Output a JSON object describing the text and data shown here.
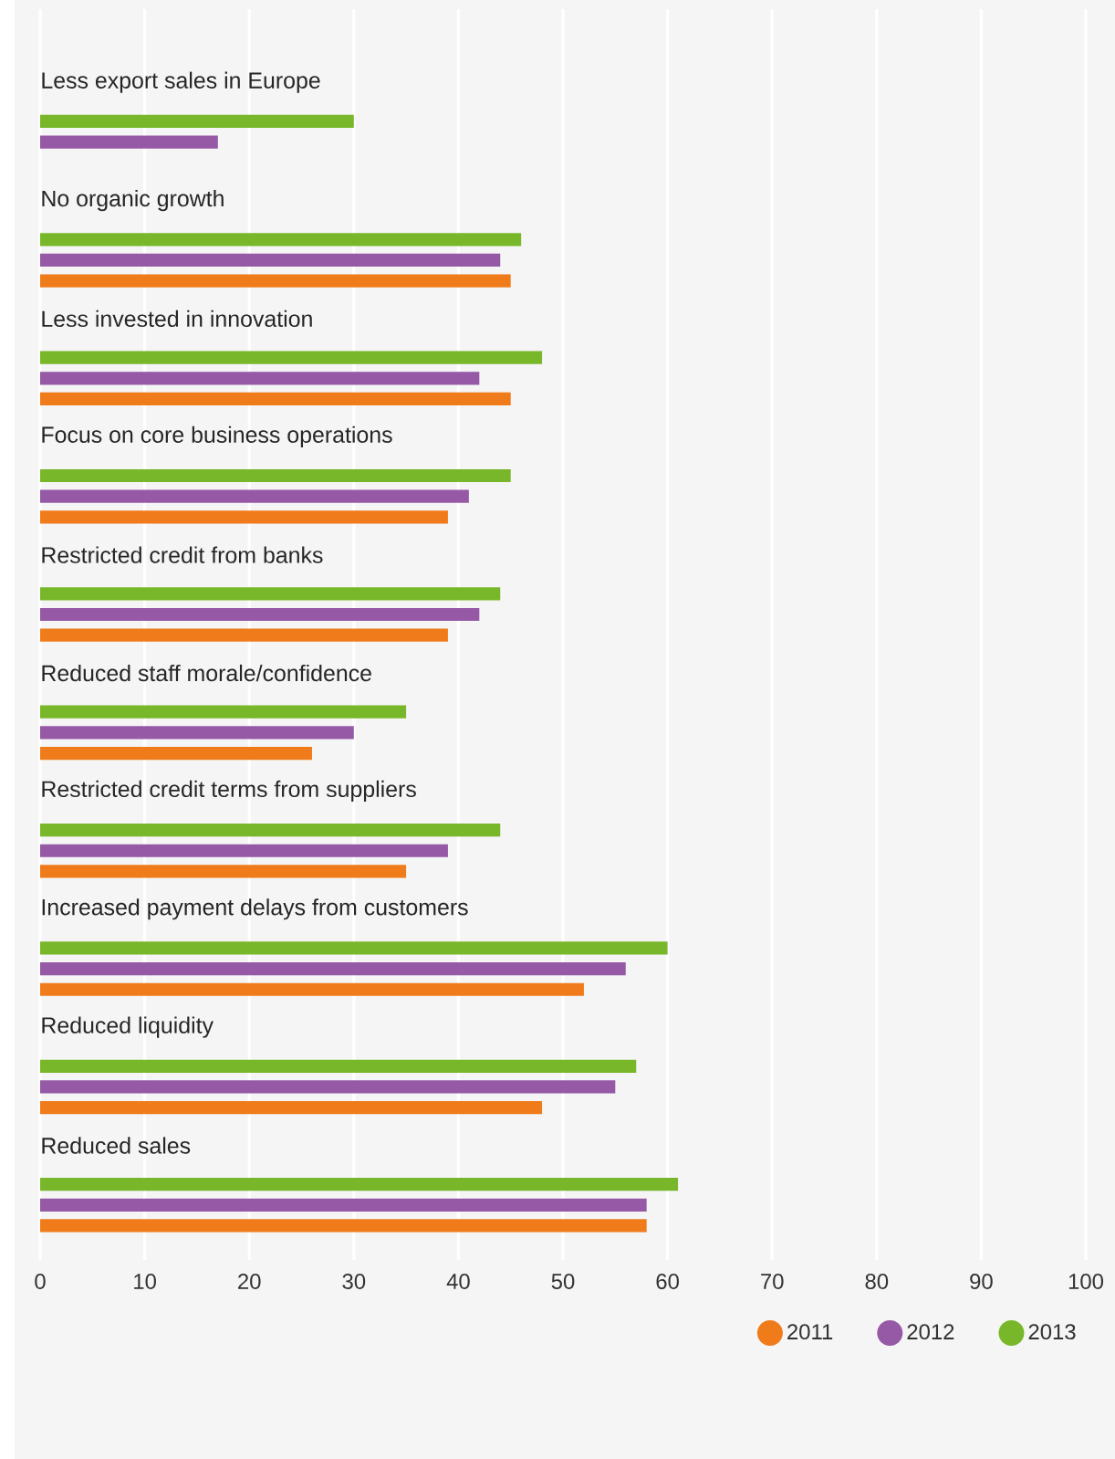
{
  "chart_data": {
    "type": "bar",
    "orientation": "horizontal",
    "categories": [
      "Less export sales in Europe",
      "No organic growth",
      "Less invested in innovation",
      "Focus on core business operations",
      "Restricted credit from banks",
      "Reduced staff morale/confidence",
      "Restricted credit terms from suppliers",
      "Increased payment delays from customers",
      "Reduced liquidity",
      "Reduced sales"
    ],
    "series": [
      {
        "name": "2011",
        "color": "#f07b1a",
        "values": [
          null,
          45,
          45,
          39,
          39,
          26,
          35,
          52,
          48,
          58
        ]
      },
      {
        "name": "2012",
        "color": "#9659a6",
        "values": [
          17,
          44,
          42,
          41,
          42,
          30,
          39,
          56,
          55,
          58
        ]
      },
      {
        "name": "2013",
        "color": "#78b729",
        "values": [
          30,
          46,
          48,
          45,
          44,
          35,
          44,
          60,
          57,
          61
        ]
      }
    ],
    "xlim": [
      0,
      100
    ],
    "xticks": [
      0,
      10,
      20,
      30,
      40,
      50,
      60,
      70,
      80,
      90,
      100
    ],
    "grid": "x",
    "legend": "bottom right"
  }
}
